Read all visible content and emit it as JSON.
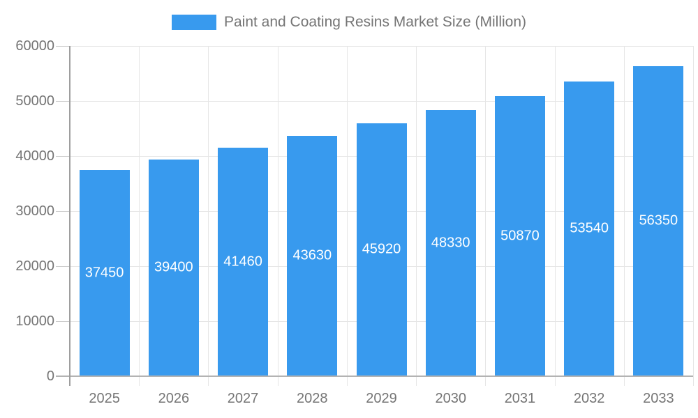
{
  "legend": {
    "label": "Paint and Coating Resins Market Size (Million)"
  },
  "colors": {
    "bar": "#389aee",
    "value_label": "#ffffff",
    "axis_text": "#757575",
    "grid": "#e6e6e6",
    "tick": "#cccccc",
    "axis_line": "#9e9e9e",
    "baseline": "#b3b3b3"
  },
  "chart_data": {
    "type": "bar",
    "title": "Paint and Coating Resins Market Size (Million)",
    "categories": [
      "2025",
      "2026",
      "2027",
      "2028",
      "2029",
      "2030",
      "2031",
      "2032",
      "2033"
    ],
    "values": [
      37450,
      39400,
      41460,
      43630,
      45920,
      48330,
      50870,
      53540,
      56350
    ],
    "xlabel": "",
    "ylabel": "",
    "ylim": [
      0,
      60000
    ],
    "yticks": [
      0,
      10000,
      20000,
      30000,
      40000,
      50000,
      60000
    ],
    "grid": true,
    "legend_position": "top",
    "value_label_position": "inside-middle"
  }
}
